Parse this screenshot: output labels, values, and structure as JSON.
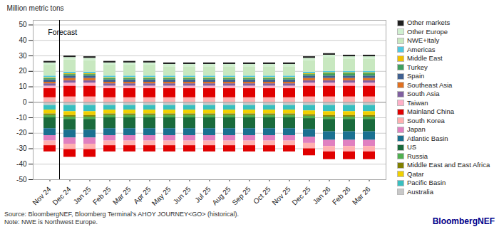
{
  "chart_data": {
    "type": "bar",
    "stacked": true,
    "y_label": "Million metric tons",
    "source": "Source: BloombergNEF, Bloomberg Terminal's AHOY JOURNEY<GO> (historical).\nNote: NWE is Northwest Europe.",
    "brand": "BloombergNEF",
    "annotations": [
      {
        "text": "Forecast",
        "x": "Dec 24",
        "y": 47
      }
    ],
    "categories": [
      "Nov 24",
      "Dec 24",
      "Jan 25",
      "Feb 25",
      "Mar 25",
      "Apr 25",
      "May 25",
      "Jun 25",
      "Jul 25",
      "Aug 25",
      "Sep 25",
      "Oct 25",
      "Nov 25",
      "Dec 25",
      "Jan 26",
      "Feb 26",
      "Mar 26"
    ],
    "ylim": [
      -50,
      53
    ],
    "yticks": [
      -50,
      -40,
      -30,
      -20,
      -10,
      0,
      10,
      20,
      30,
      40,
      50
    ],
    "grid": true,
    "legend": "right",
    "series": [
      {
        "name": "Australia",
        "color": "#c8c8c8",
        "values": [
          -2.0,
          -2.0,
          -2.0,
          -2.0,
          -2.0,
          -2.0,
          -2.0,
          -2.0,
          -2.0,
          -2.0,
          -2.0,
          -2.0,
          -2.0,
          -2.0,
          -2.0,
          -2.0,
          -2.0
        ]
      },
      {
        "name": "Pacific Basin",
        "color": "#38bfc0",
        "values": [
          -3.0,
          -4.0,
          -4.0,
          -3.0,
          -3.0,
          -3.0,
          -3.0,
          -3.0,
          -3.0,
          -3.0,
          -3.0,
          -3.0,
          -3.0,
          -3.5,
          -4.0,
          -4.0,
          -4.0
        ]
      },
      {
        "name": "Qatar",
        "color": "#f0d000",
        "values": [
          -2.5,
          -2.5,
          -2.5,
          -2.5,
          -2.5,
          -2.5,
          -2.5,
          -2.5,
          -2.5,
          -2.5,
          -2.5,
          -2.5,
          -2.5,
          -2.5,
          -2.5,
          -2.5,
          -2.5
        ]
      },
      {
        "name": "Middle East and East Africa",
        "color": "#808000",
        "values": [
          -1.0,
          -1.0,
          -1.0,
          -1.0,
          -1.0,
          -1.0,
          -1.0,
          -1.0,
          -1.0,
          -1.0,
          -1.0,
          -1.0,
          -1.0,
          -1.0,
          -1.0,
          -1.0,
          -1.0
        ]
      },
      {
        "name": "Russia",
        "color": "#50b050",
        "values": [
          -1.5,
          -1.5,
          -1.5,
          -1.5,
          -1.5,
          -1.5,
          -1.5,
          -1.5,
          -1.5,
          -1.5,
          -1.5,
          -1.5,
          -1.5,
          -1.5,
          -1.5,
          -1.5,
          -1.5
        ]
      },
      {
        "name": "US",
        "color": "#1a6b3c",
        "values": [
          -7.0,
          -7.0,
          -7.0,
          -7.0,
          -7.0,
          -7.0,
          -7.0,
          -7.0,
          -7.0,
          -7.0,
          -7.0,
          -7.0,
          -7.0,
          -7.0,
          -8.0,
          -8.0,
          -8.0
        ]
      },
      {
        "name": "Atlantic Basin",
        "color": "#1a7090",
        "values": [
          -4.5,
          -5.0,
          -5.0,
          -4.5,
          -4.5,
          -4.5,
          -4.5,
          -4.5,
          -4.5,
          -4.5,
          -4.5,
          -4.5,
          -4.5,
          -5.0,
          -5.5,
          -5.5,
          -5.5
        ]
      },
      {
        "name": "Japan",
        "color": "#e080c0",
        "values": [
          -3.5,
          -4.0,
          -4.0,
          -3.5,
          -3.5,
          -3.5,
          -3.5,
          -3.5,
          -3.5,
          -3.5,
          -3.5,
          -3.5,
          -3.5,
          -4.0,
          -4.0,
          -4.0,
          -4.0
        ]
      },
      {
        "name": "South Korea",
        "color": "#ffb0b0",
        "values": [
          -3.0,
          -3.5,
          -3.5,
          -3.0,
          -3.0,
          -3.0,
          -3.0,
          -3.0,
          -3.0,
          -3.0,
          -3.0,
          -3.0,
          -3.0,
          -3.5,
          -3.5,
          -3.5,
          -3.5
        ]
      },
      {
        "name": "Mainland China",
        "color": "#e00000",
        "values": [
          -4.0,
          -5.0,
          -5.0,
          -4.0,
          -4.0,
          -4.0,
          -4.0,
          -4.0,
          -4.0,
          -4.0,
          -4.0,
          -4.0,
          -4.0,
          -4.5,
          -5.0,
          -5.0,
          -5.0
        ]
      },
      {
        "name": "South Korea",
        "color": "#ffb0b0",
        "values": [
          3.0,
          3.5,
          3.5,
          3.0,
          3.0,
          3.0,
          3.0,
          3.0,
          3.0,
          3.0,
          3.0,
          3.0,
          3.0,
          3.5,
          3.5,
          3.5,
          3.5
        ]
      },
      {
        "name": "Mainland China",
        "color": "#e00000",
        "values": [
          6.0,
          7.0,
          7.0,
          6.0,
          6.0,
          6.0,
          6.0,
          6.0,
          6.0,
          6.0,
          6.0,
          6.0,
          6.0,
          7.0,
          7.0,
          7.0,
          7.0
        ]
      },
      {
        "name": "Taiwan",
        "color": "#ffb0c8",
        "values": [
          1.5,
          2.0,
          2.0,
          1.5,
          1.5,
          1.5,
          1.5,
          1.5,
          1.5,
          1.5,
          1.5,
          1.5,
          1.5,
          2.0,
          2.0,
          2.0,
          2.0
        ]
      },
      {
        "name": "South Asia",
        "color": "#8060a0",
        "values": [
          1.5,
          1.5,
          1.5,
          1.5,
          1.5,
          1.5,
          1.5,
          1.5,
          1.5,
          1.5,
          1.5,
          1.5,
          1.5,
          1.5,
          1.5,
          1.5,
          1.5
        ]
      },
      {
        "name": "Southeast Asia",
        "color": "#e07020",
        "values": [
          1.0,
          1.5,
          1.5,
          1.0,
          1.0,
          1.0,
          1.0,
          1.0,
          1.0,
          1.0,
          1.0,
          1.0,
          1.0,
          1.5,
          1.5,
          1.5,
          1.5
        ]
      },
      {
        "name": "Spain",
        "color": "#406090",
        "values": [
          1.5,
          1.5,
          1.5,
          1.5,
          1.5,
          1.5,
          1.5,
          1.5,
          1.5,
          1.5,
          1.5,
          1.5,
          1.5,
          1.5,
          1.5,
          1.5,
          1.5
        ]
      },
      {
        "name": "Turkey",
        "color": "#40a060",
        "values": [
          1.0,
          1.0,
          1.0,
          1.0,
          1.0,
          1.0,
          1.0,
          1.0,
          1.0,
          1.0,
          1.0,
          1.0,
          1.0,
          1.0,
          1.5,
          1.5,
          1.5
        ]
      },
      {
        "name": "Middle East",
        "color": "#f0c000",
        "values": [
          0.5,
          0.5,
          0.5,
          0.5,
          0.5,
          0.5,
          0.5,
          0.5,
          0.5,
          0.5,
          0.5,
          0.5,
          0.5,
          0.5,
          0.5,
          0.5,
          0.5
        ]
      },
      {
        "name": "Americas",
        "color": "#50c8e0",
        "values": [
          1.0,
          1.0,
          1.0,
          1.0,
          1.0,
          1.0,
          1.0,
          1.0,
          1.0,
          1.0,
          1.0,
          1.0,
          1.0,
          1.0,
          1.0,
          1.0,
          1.0
        ]
      },
      {
        "name": "NWE+Italy",
        "color": "#c8e8c0",
        "values": [
          7.0,
          8.0,
          7.5,
          7.0,
          7.0,
          7.0,
          6.0,
          6.0,
          6.0,
          6.0,
          6.0,
          6.0,
          6.0,
          7.5,
          9.0,
          8.0,
          8.0
        ]
      },
      {
        "name": "Other Europe",
        "color": "#d0f0d0",
        "values": [
          1.5,
          1.5,
          1.5,
          1.5,
          1.5,
          1.5,
          1.5,
          1.5,
          1.5,
          1.5,
          1.5,
          1.5,
          1.5,
          1.5,
          1.5,
          1.5,
          1.5
        ]
      },
      {
        "name": "Other markets",
        "color": "#202020",
        "values": [
          1.0,
          1.0,
          1.0,
          1.0,
          1.0,
          1.0,
          1.0,
          1.0,
          1.0,
          1.0,
          1.0,
          1.0,
          1.0,
          1.0,
          1.0,
          1.0,
          1.0
        ]
      }
    ]
  }
}
